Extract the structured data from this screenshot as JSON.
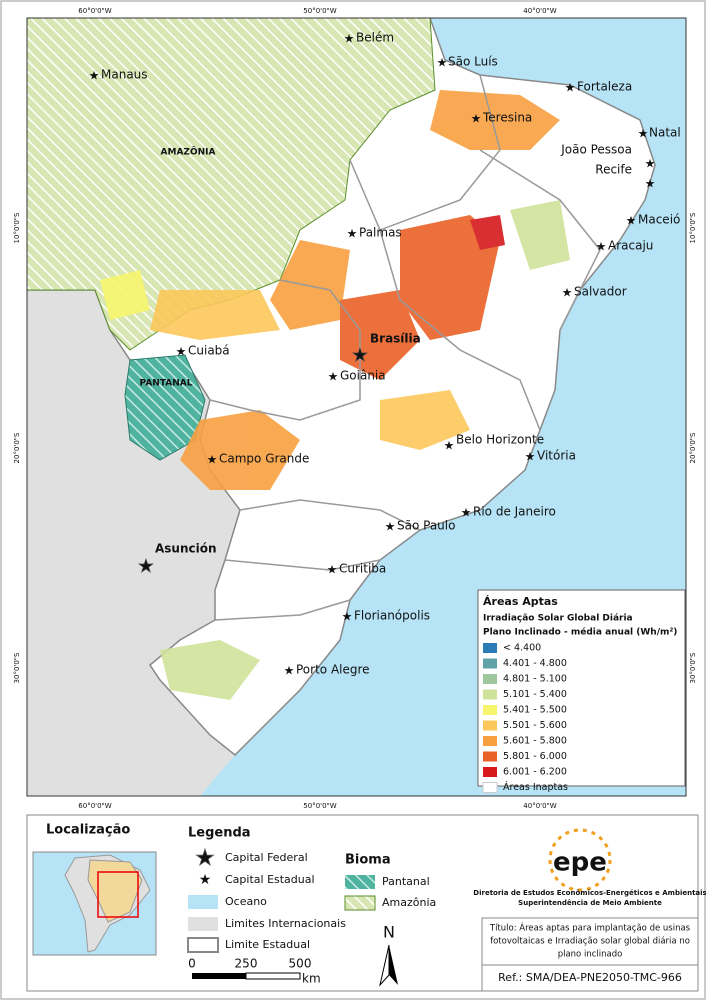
{
  "map": {
    "graticule_x": [
      "60°0'0\"W",
      "50°0'0\"W",
      "40°0'0\"W"
    ],
    "graticule_y": [
      "10°0'0\"S",
      "20°0'0\"S",
      "30°0'0\"S"
    ],
    "cities": [
      "Belém",
      "Manaus",
      "São Luís",
      "Fortaleza",
      "Teresina",
      "Natal",
      "João Pessoa",
      "Recife",
      "Maceió",
      "Palmas",
      "Aracaju",
      "Salvador",
      "Cuiabá",
      "Goiânia",
      "Belo Horizonte",
      "Vitória",
      "Campo Grande",
      "Rio de Janeiro",
      "São Paulo",
      "Curitiba",
      "Florianópolis",
      "Porto Alegre"
    ],
    "capital_federal": "Brasília",
    "foreign_capital": "Asunción",
    "regions": [
      "AMAZÔNIA",
      "PANTANAL"
    ]
  },
  "aptas_legend": {
    "title": "Áreas Aptas",
    "subtitle": "Irradiação Solar Global Diária",
    "subtitle2": "Plano Inclinado - média anual (Wh/m²)",
    "classes": [
      {
        "label": "< 4.400",
        "color": "#2c7bb6"
      },
      {
        "label": "4.401 - 4.800",
        "color": "#5fa2a8"
      },
      {
        "label": "4.801 - 5.100",
        "color": "#9ec79e"
      },
      {
        "label": "5.101 - 5.400",
        "color": "#cfe29a"
      },
      {
        "label": "5.401 - 5.500",
        "color": "#f7f56e"
      },
      {
        "label": "5.501 - 5.600",
        "color": "#fcc85a"
      },
      {
        "label": "5.601 - 5.800",
        "color": "#f8a040"
      },
      {
        "label": "5.801 - 6.000",
        "color": "#ea6127"
      },
      {
        "label": "6.001 - 6.200",
        "color": "#d7191c"
      },
      {
        "label": "Áreas Inaptas",
        "color": "#ffffff"
      }
    ]
  },
  "location": {
    "title": "Localização"
  },
  "legend": {
    "title": "Legenda",
    "items": [
      "Capital Federal",
      "Capital Estadual",
      "Oceano",
      "Limites Internacionais",
      "Limite Estadual"
    ]
  },
  "bioma": {
    "title": "Bioma",
    "items": [
      "Pantanal",
      "Amazônia"
    ]
  },
  "scale": {
    "labels": [
      "0",
      "250",
      "500"
    ],
    "unit": "km"
  },
  "north": "N",
  "logo": "epe",
  "org": [
    "Diretoria de Estudos Econômicos-Energéticos e Ambientais",
    "Superintendência de Meio Ambiente"
  ],
  "title_box": [
    "Título: Áreas aptas para implantação de usinas",
    "fotovoltaicas e Irradiação solar global diária no",
    "plano inclinado"
  ],
  "ref": "Ref.: SMA/DEA-PNE2050-TMC-966"
}
